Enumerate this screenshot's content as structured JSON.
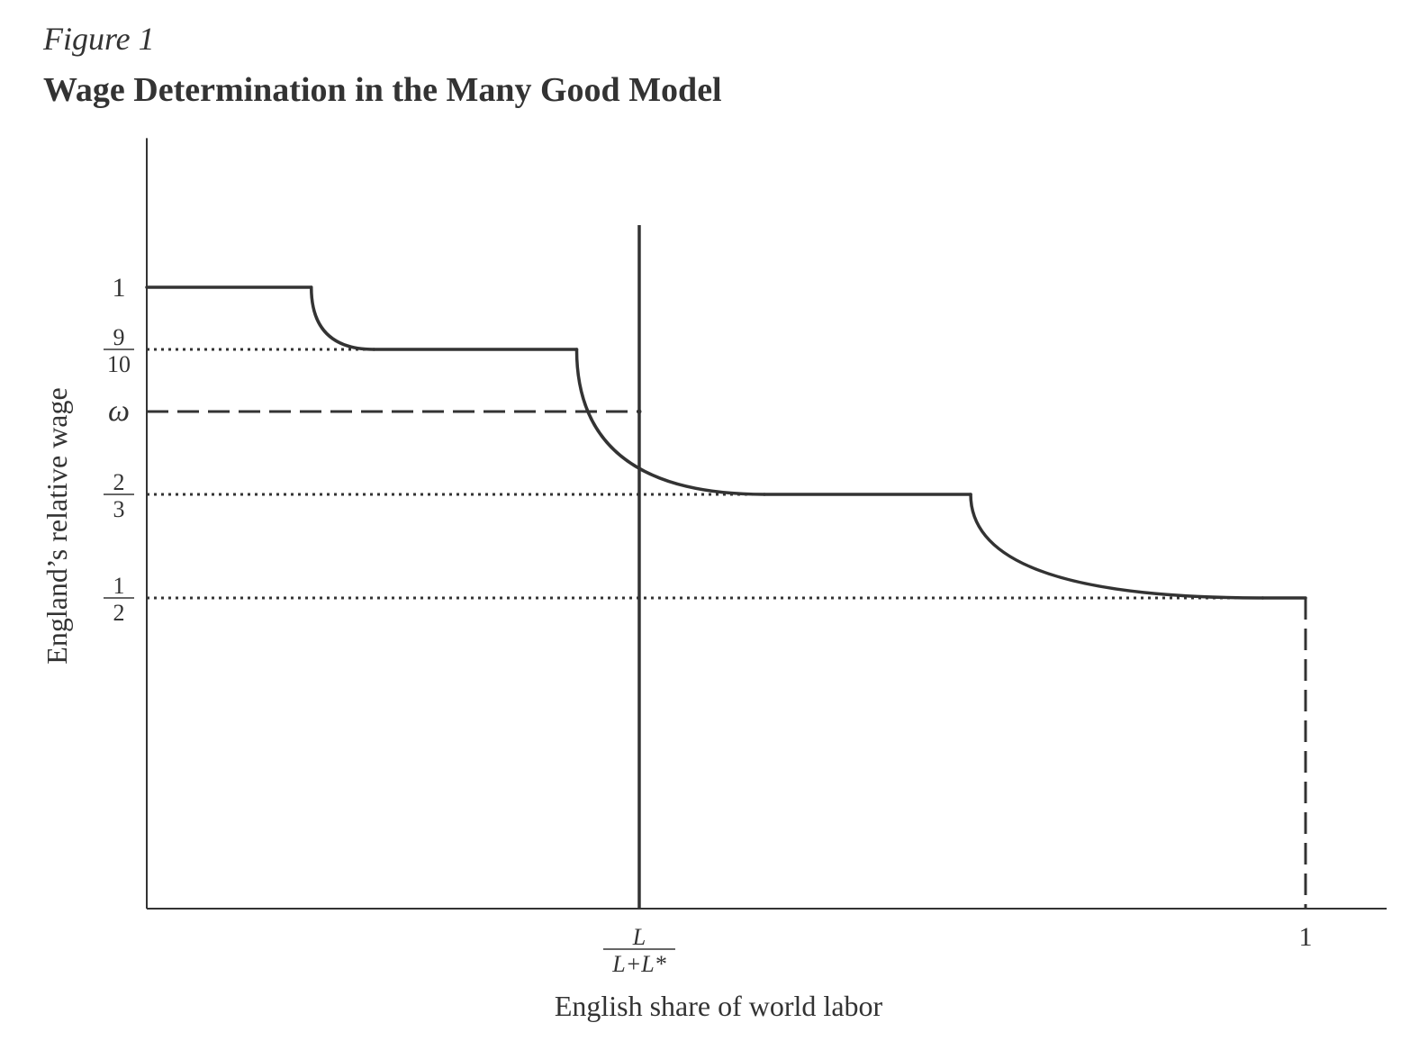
{
  "figure": {
    "label": "Figure 1",
    "title": "Wage Determination in the Many Good Model"
  },
  "chart_data": {
    "type": "line",
    "title": "Wage Determination in the Many Good Model",
    "xlabel": "English share of world labor",
    "ylabel": "England’s relative wage",
    "xlim": [
      0,
      1.07
    ],
    "ylim": [
      0,
      1.24
    ],
    "x_ticks": [
      {
        "x": 0.425,
        "num": "L",
        "den": "L+L*"
      },
      {
        "x": 1,
        "label": "1"
      }
    ],
    "y_ticks": [
      {
        "y": 1,
        "label": "1"
      },
      {
        "y": 0.9,
        "num": "9",
        "den": "10"
      },
      {
        "y": 0.8,
        "label": "ω"
      },
      {
        "y": 0.6667,
        "num": "2",
        "den": "3"
      },
      {
        "y": 0.5,
        "num": "1",
        "den": "2"
      }
    ],
    "series": [
      {
        "style": "solid",
        "segments": [
          {
            "kind": "flat",
            "x": [
              0,
              0.142
            ],
            "y": 1
          },
          {
            "kind": "curve",
            "x": [
              0.142,
              0.196
            ],
            "y": [
              1,
              0.9
            ]
          },
          {
            "kind": "flat",
            "x": [
              0.196,
              0.371
            ],
            "y": 0.9
          },
          {
            "kind": "curve",
            "x": [
              0.371,
              0.533
            ],
            "y": [
              0.9,
              0.6667
            ]
          },
          {
            "kind": "flat",
            "x": [
              0.533,
              0.711
            ],
            "y": 0.6667
          },
          {
            "kind": "curve",
            "x": [
              0.711,
              0.963
            ],
            "y": [
              0.6667,
              0.5
            ]
          },
          {
            "kind": "flat",
            "x": [
              0.963,
              1
            ],
            "y": 0.5
          }
        ]
      }
    ],
    "supply_line": {
      "x": 0.425,
      "y": [
        0,
        1.1
      ]
    },
    "equilibrium": {
      "x": 0.425,
      "y": 0.8
    },
    "reference_lines": [
      {
        "y": 0.9,
        "x_end": 0.196,
        "style": "dotted"
      },
      {
        "y": 0.6667,
        "x_end": 0.533,
        "style": "dotted"
      },
      {
        "y": 0.5,
        "x_end": 0.963,
        "style": "dotted"
      },
      {
        "y": 0.8,
        "x_end": 0.425,
        "style": "dashed"
      },
      {
        "x": 1,
        "y_end": 0.5,
        "style": "dashed",
        "vertical": true
      }
    ],
    "grid": false,
    "legend": "none",
    "colors": {
      "line": "#333333"
    }
  }
}
